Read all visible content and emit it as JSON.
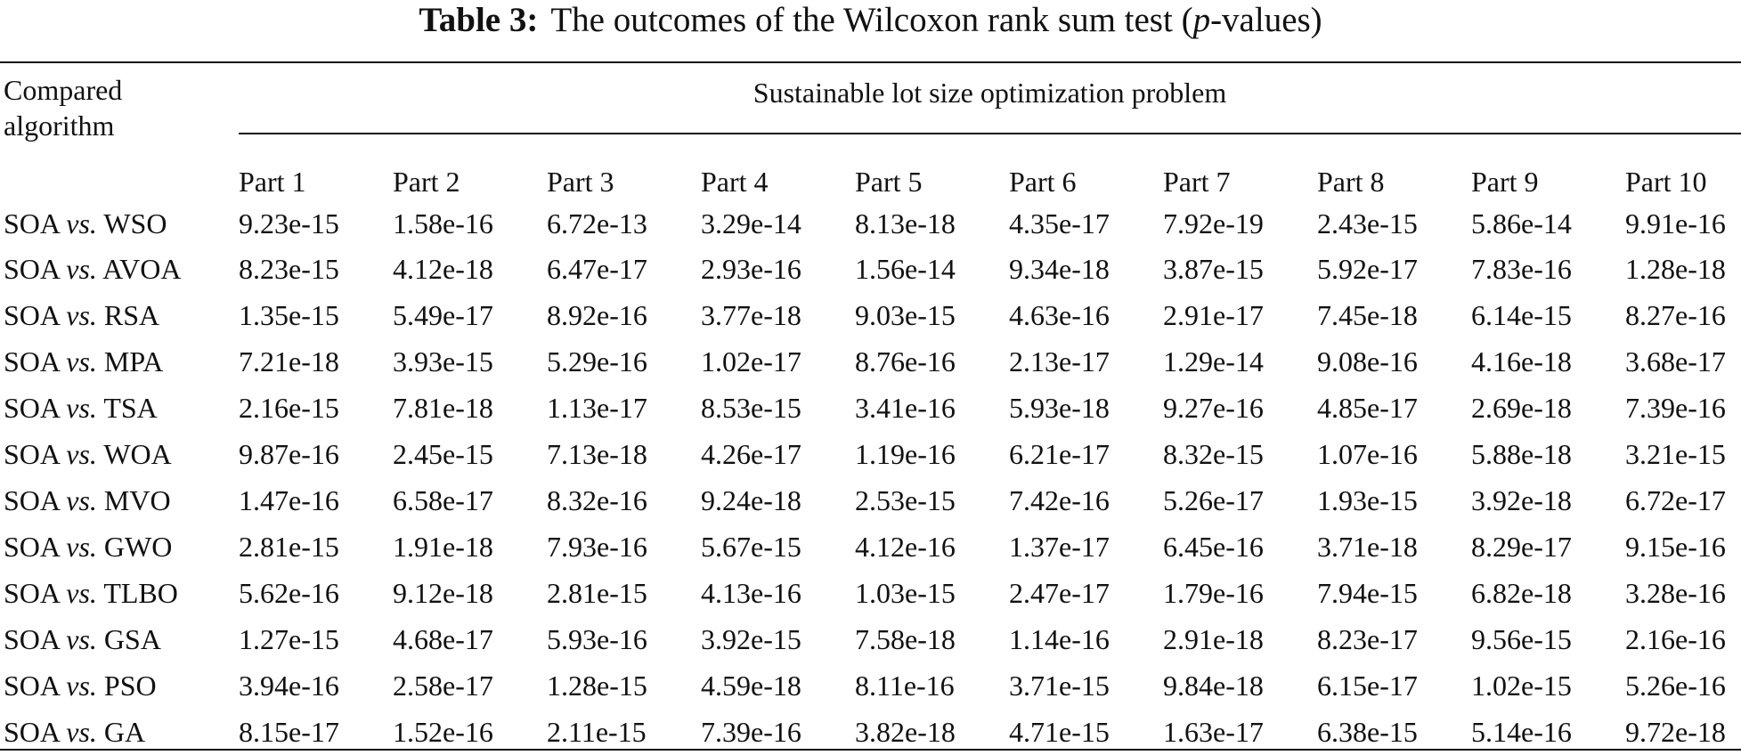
{
  "caption": {
    "label": "Table 3:",
    "text_before": "The outcomes of the Wilcoxon rank sum test (",
    "text_italic": "p",
    "text_after": "-values)"
  },
  "header": {
    "first_column": "Compared algorithm",
    "group_title": "Sustainable lot size optimization problem",
    "columns": [
      "Part 1",
      "Part 2",
      "Part 3",
      "Part 4",
      "Part 5",
      "Part 6",
      "Part 7",
      "Part 8",
      "Part 9",
      "Part 10"
    ]
  },
  "rows": [
    {
      "base": "SOA",
      "vs": "vs.",
      "rival": "WSO",
      "values": [
        "9.23e-15",
        "1.58e-16",
        "6.72e-13",
        "3.29e-14",
        "8.13e-18",
        "4.35e-17",
        "7.92e-19",
        "2.43e-15",
        "5.86e-14",
        "9.91e-16"
      ]
    },
    {
      "base": "SOA",
      "vs": "vs.",
      "rival": "AVOA",
      "values": [
        "8.23e-15",
        "4.12e-18",
        "6.47e-17",
        "2.93e-16",
        "1.56e-14",
        "9.34e-18",
        "3.87e-15",
        "5.92e-17",
        "7.83e-16",
        "1.28e-18"
      ]
    },
    {
      "base": "SOA",
      "vs": "vs.",
      "rival": "RSA",
      "values": [
        "1.35e-15",
        "5.49e-17",
        "8.92e-16",
        "3.77e-18",
        "9.03e-15",
        "4.63e-16",
        "2.91e-17",
        "7.45e-18",
        "6.14e-15",
        "8.27e-16"
      ]
    },
    {
      "base": "SOA",
      "vs": "vs.",
      "rival": "MPA",
      "values": [
        "7.21e-18",
        "3.93e-15",
        "5.29e-16",
        "1.02e-17",
        "8.76e-16",
        "2.13e-17",
        "1.29e-14",
        "9.08e-16",
        "4.16e-18",
        "3.68e-17"
      ]
    },
    {
      "base": "SOA",
      "vs": "vs.",
      "rival": "TSA",
      "values": [
        "2.16e-15",
        "7.81e-18",
        "1.13e-17",
        "8.53e-15",
        "3.41e-16",
        "5.93e-18",
        "9.27e-16",
        "4.85e-17",
        "2.69e-18",
        "7.39e-16"
      ]
    },
    {
      "base": "SOA",
      "vs": "vs.",
      "rival": "WOA",
      "values": [
        "9.87e-16",
        "2.45e-15",
        "7.13e-18",
        "4.26e-17",
        "1.19e-16",
        "6.21e-17",
        "8.32e-15",
        "1.07e-16",
        "5.88e-18",
        "3.21e-15"
      ]
    },
    {
      "base": "SOA",
      "vs": "vs.",
      "rival": "MVO",
      "values": [
        "1.47e-16",
        "6.58e-17",
        "8.32e-16",
        "9.24e-18",
        "2.53e-15",
        "7.42e-16",
        "5.26e-17",
        "1.93e-15",
        "3.92e-18",
        "6.72e-17"
      ]
    },
    {
      "base": "SOA",
      "vs": "vs.",
      "rival": "GWO",
      "values": [
        "2.81e-15",
        "1.91e-18",
        "7.93e-16",
        "5.67e-15",
        "4.12e-16",
        "1.37e-17",
        "6.45e-16",
        "3.71e-18",
        "8.29e-17",
        "9.15e-16"
      ]
    },
    {
      "base": "SOA",
      "vs": "vs.",
      "rival": "TLBO",
      "values": [
        "5.62e-16",
        "9.12e-18",
        "2.81e-15",
        "4.13e-16",
        "1.03e-15",
        "2.47e-17",
        "1.79e-16",
        "7.94e-15",
        "6.82e-18",
        "3.28e-16"
      ]
    },
    {
      "base": "SOA",
      "vs": "vs.",
      "rival": "GSA",
      "values": [
        "1.27e-15",
        "4.68e-17",
        "5.93e-16",
        "3.92e-15",
        "7.58e-18",
        "1.14e-16",
        "2.91e-18",
        "8.23e-17",
        "9.56e-15",
        "2.16e-16"
      ]
    },
    {
      "base": "SOA",
      "vs": "vs.",
      "rival": "PSO",
      "values": [
        "3.94e-16",
        "2.58e-17",
        "1.28e-15",
        "4.59e-18",
        "8.11e-16",
        "3.71e-15",
        "9.84e-18",
        "6.15e-17",
        "1.02e-15",
        "5.26e-16"
      ]
    },
    {
      "base": "SOA",
      "vs": "vs.",
      "rival": "GA",
      "values": [
        "8.15e-17",
        "1.52e-16",
        "2.11e-15",
        "7.39e-16",
        "3.82e-18",
        "4.71e-15",
        "1.63e-17",
        "6.38e-15",
        "5.14e-16",
        "9.72e-18"
      ]
    }
  ]
}
